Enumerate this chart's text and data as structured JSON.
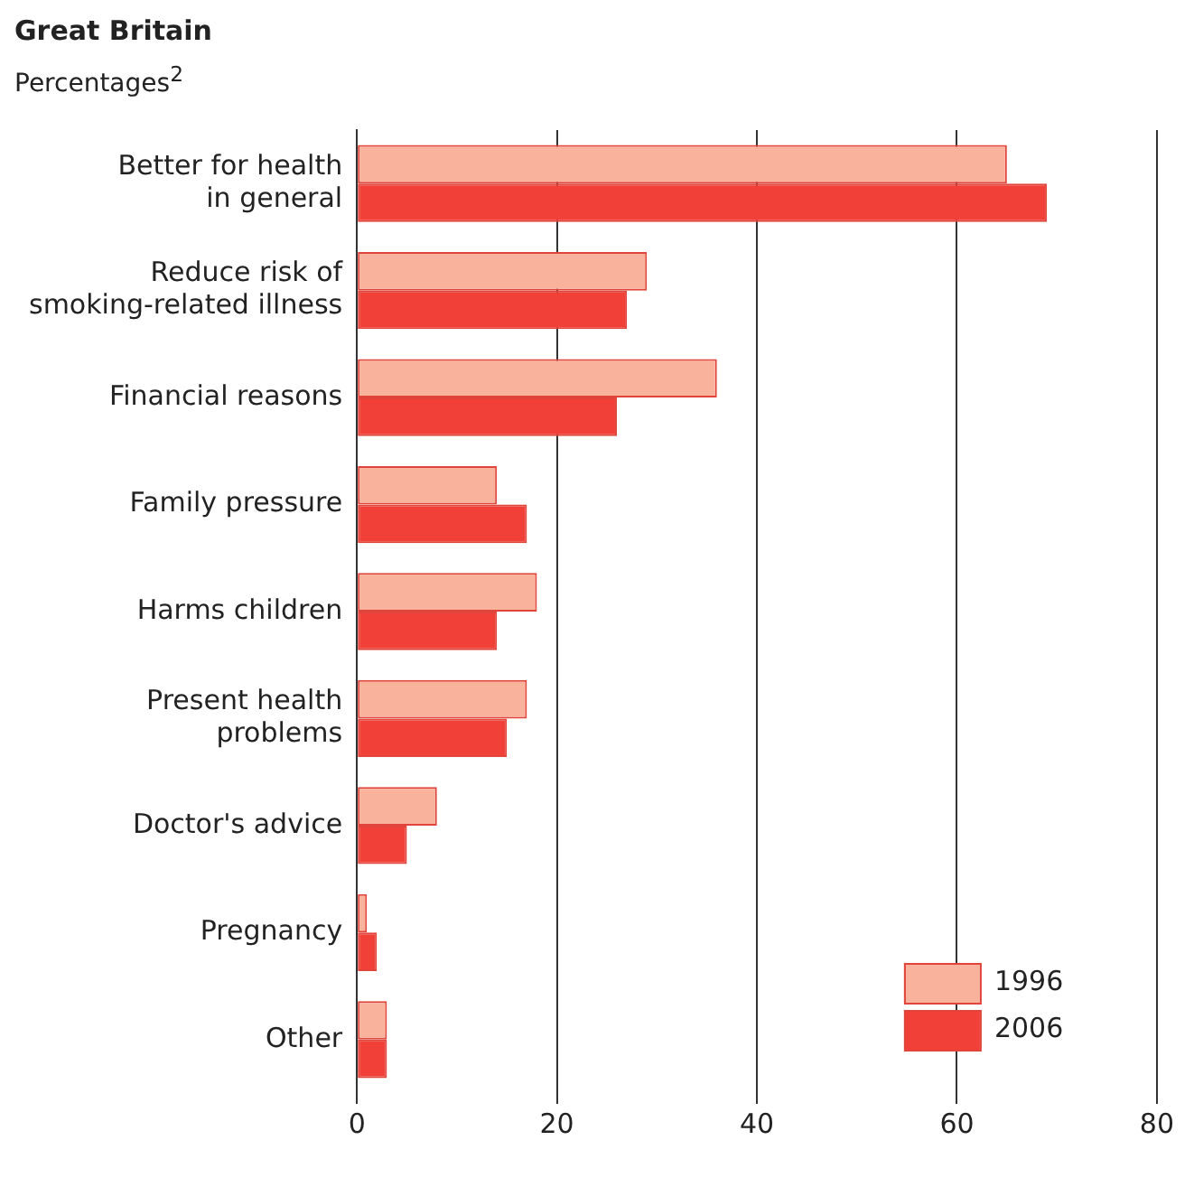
{
  "chart_data": {
    "type": "bar",
    "title": "Great Britain",
    "subtitle": "Percentages$^{2}$",
    "orientation": "horizontal",
    "categories": [
      "Better for health in general",
      "Reduce risk of smoking-related illness",
      "Financial reasons",
      "Family pressure",
      "Harms children",
      "Present health problems",
      "Doctor's advice",
      "Pregnancy",
      "Other"
    ],
    "series": [
      {
        "name": "1996",
        "color": "#f9b29c",
        "values": [
          65,
          29,
          36,
          14,
          18,
          17,
          8,
          1,
          3
        ]
      },
      {
        "name": "2006",
        "color": "#f04037",
        "values": [
          69,
          27,
          26,
          17,
          14,
          15,
          5,
          2,
          3
        ]
      }
    ],
    "xlim": [
      0,
      80
    ],
    "xticks": [
      0,
      20,
      40,
      60,
      80
    ],
    "grid": "x",
    "legend": "bottom right"
  }
}
